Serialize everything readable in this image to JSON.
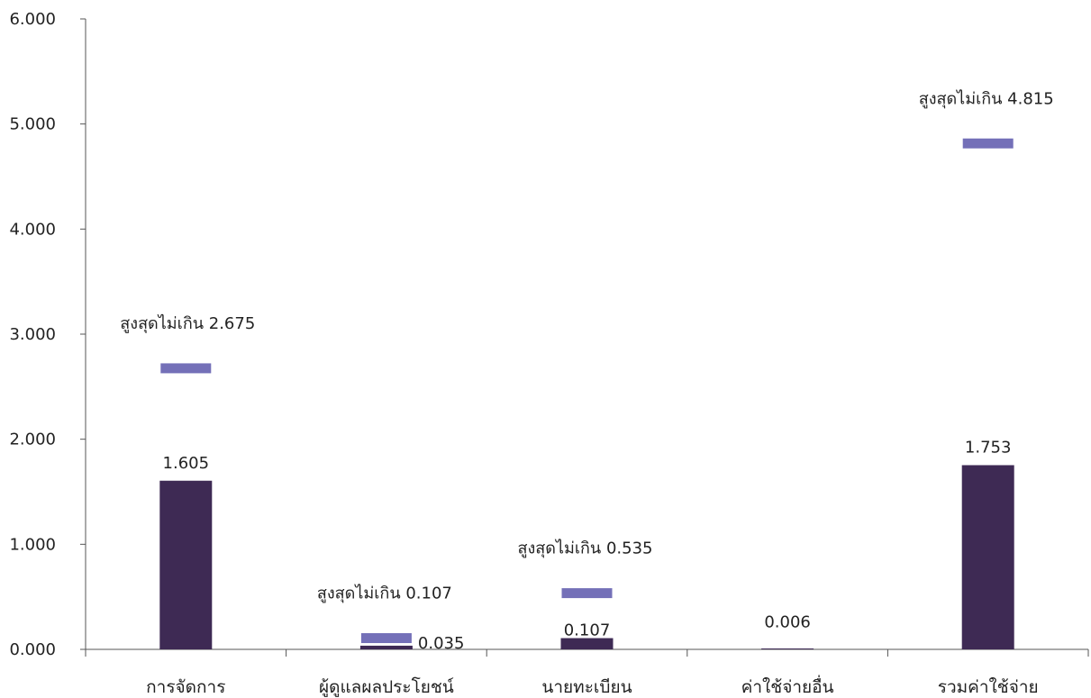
{
  "chart_data": {
    "type": "bar",
    "categories": [
      "การจัดการ",
      "ผู้ดูแลผลประโยชน์",
      "นายทะเบียน",
      "ค่าใช้จ่ายอื่น",
      "รวมค่าใช้จ่าย"
    ],
    "series": [
      {
        "values": [
          1.605,
          0.035,
          0.107,
          0.006,
          1.753
        ],
        "color": "#3e2a54"
      },
      {
        "values": [
          2.675,
          0.107,
          0.535,
          null,
          4.815
        ],
        "color": "#7470b8"
      }
    ],
    "value_labels": [
      "1.605",
      "0.035",
      "0.107",
      "0.006",
      "1.753"
    ],
    "max_labels": [
      "สูงสุดไม่เกิน 2.675",
      "สูงสุดไม่เกิน 0.107",
      "สูงสุดไม่เกิน 0.535",
      "",
      "สูงสุดไม่เกิน 4.815"
    ],
    "yticks": [
      "0.000",
      "1.000",
      "2.000",
      "3.000",
      "4.000",
      "5.000",
      "6.000"
    ],
    "ylim": [
      0,
      6
    ],
    "title": "",
    "xlabel": "",
    "ylabel": "",
    "grid": false,
    "legend": "none"
  }
}
